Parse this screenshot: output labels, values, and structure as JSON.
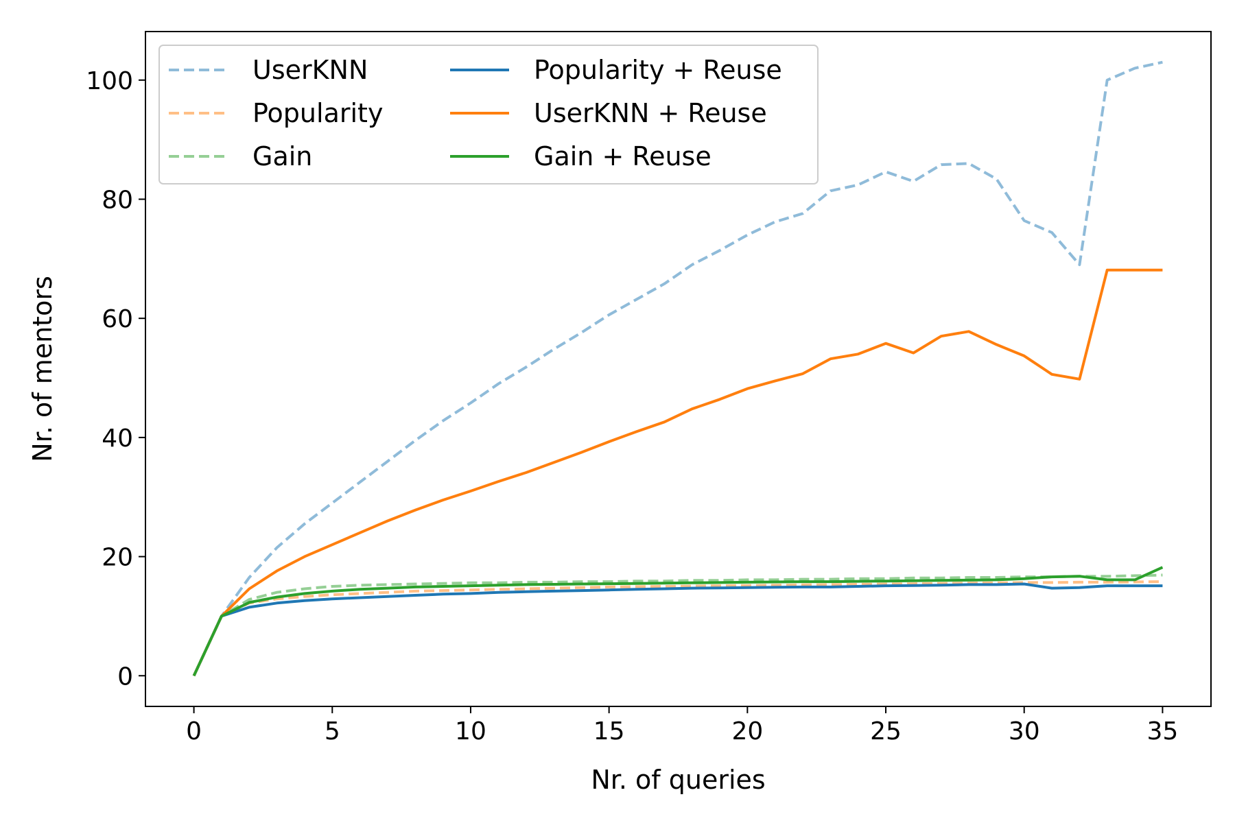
{
  "chart_data": {
    "type": "line",
    "title": "",
    "xlabel": "Nr. of queries",
    "ylabel": "Nr. of mentors",
    "xlim": [
      -1.75,
      36.75
    ],
    "ylim": [
      -5.15,
      108.15
    ],
    "xticks": [
      0,
      5,
      10,
      15,
      20,
      25,
      30,
      35
    ],
    "yticks": [
      0,
      20,
      40,
      60,
      80,
      100
    ],
    "grid": false,
    "legend_position": "top-left",
    "legend_columns": 2,
    "x": [
      0,
      1,
      2,
      3,
      4,
      5,
      6,
      7,
      8,
      9,
      10,
      11,
      12,
      13,
      14,
      15,
      16,
      17,
      18,
      19,
      20,
      21,
      22,
      23,
      24,
      25,
      26,
      27,
      28,
      29,
      30,
      31,
      32,
      33,
      34,
      35
    ],
    "series": [
      {
        "name": "UserKNN",
        "color": "#1f77b4",
        "opacity": 0.5,
        "dash": "dashed",
        "values": [
          0,
          10,
          16.5,
          21.5,
          25.5,
          29,
          32.5,
          36,
          39.5,
          42.8,
          45.8,
          49,
          51.8,
          54.8,
          57.6,
          60.6,
          63.2,
          65.8,
          69,
          71.4,
          74,
          76.2,
          77.6,
          81.4,
          82.4,
          84.6,
          83,
          85.8,
          86,
          83.4,
          76.4,
          74.4,
          69,
          100,
          102,
          103
        ]
      },
      {
        "name": "Popularity",
        "color": "#ff7f0e",
        "opacity": 0.5,
        "dash": "dashed",
        "values": [
          0,
          10,
          12.2,
          12.9,
          13.3,
          13.6,
          13.8,
          14,
          14.2,
          14.3,
          14.4,
          14.5,
          14.6,
          14.7,
          14.8,
          14.9,
          14.95,
          15,
          15.05,
          15.1,
          15.15,
          15.2,
          15.25,
          15.3,
          15.35,
          15.4,
          15.45,
          15.5,
          15.55,
          15.6,
          15.65,
          15.65,
          15.7,
          15.7,
          15.75,
          15.8
        ]
      },
      {
        "name": "Gain",
        "color": "#2ca02c",
        "opacity": 0.5,
        "dash": "dashed",
        "values": [
          0,
          10,
          12.8,
          14,
          14.6,
          15,
          15.2,
          15.3,
          15.4,
          15.5,
          15.6,
          15.6,
          15.7,
          15.7,
          15.8,
          15.8,
          15.9,
          15.9,
          16,
          16,
          16.1,
          16.1,
          16.2,
          16.2,
          16.3,
          16.3,
          16.4,
          16.4,
          16.5,
          16.5,
          16.6,
          16.6,
          16.7,
          16.7,
          16.8,
          16.9
        ]
      },
      {
        "name": "Popularity + Reuse",
        "color": "#1f77b4",
        "opacity": 1,
        "dash": "solid",
        "values": [
          0,
          10,
          11.5,
          12.2,
          12.6,
          12.9,
          13.1,
          13.3,
          13.5,
          13.7,
          13.8,
          14,
          14.1,
          14.2,
          14.3,
          14.4,
          14.5,
          14.6,
          14.7,
          14.75,
          14.8,
          14.85,
          14.9,
          14.9,
          15,
          15.1,
          15.15,
          15.2,
          15.3,
          15.3,
          15.4,
          14.7,
          14.8,
          15.1,
          15.1,
          15.1
        ]
      },
      {
        "name": "UserKNN + Reuse",
        "color": "#ff7f0e",
        "opacity": 1,
        "dash": "solid",
        "values": [
          0,
          10,
          14.6,
          17.6,
          20,
          22,
          24,
          26,
          27.8,
          29.5,
          31,
          32.6,
          34.1,
          35.8,
          37.5,
          39.3,
          41,
          42.6,
          44.8,
          46.4,
          48.2,
          49.5,
          50.7,
          53.2,
          54,
          55.8,
          54.2,
          57,
          57.8,
          55.6,
          53.7,
          50.6,
          49.8,
          68.1,
          68.1,
          68.1
        ]
      },
      {
        "name": "Gain + Reuse",
        "color": "#2ca02c",
        "opacity": 1,
        "dash": "solid",
        "values": [
          0,
          10,
          12.3,
          13.2,
          13.8,
          14.2,
          14.5,
          14.7,
          14.9,
          15,
          15.1,
          15.2,
          15.3,
          15.35,
          15.4,
          15.45,
          15.5,
          15.55,
          15.6,
          15.65,
          15.7,
          15.75,
          15.8,
          15.8,
          15.85,
          15.9,
          15.95,
          16,
          16.05,
          16.1,
          16.3,
          16.6,
          16.7,
          16.1,
          16.1,
          18.2
        ]
      }
    ]
  }
}
